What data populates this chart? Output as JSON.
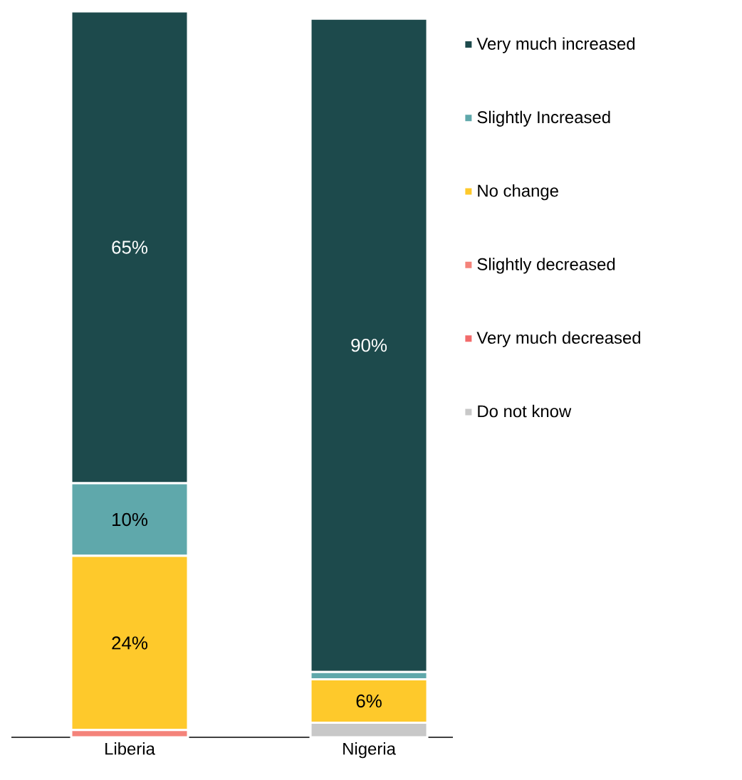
{
  "chart_data": {
    "type": "bar",
    "stacked": true,
    "legend": "right",
    "categories": [
      "Liberia",
      "Nigeria"
    ],
    "series": [
      {
        "name": "Do not know",
        "color": "#c8c8c8",
        "values": [
          0,
          2
        ],
        "value_labels": [
          null,
          null
        ]
      },
      {
        "name": "Very much decreased",
        "color": "#f26b6b",
        "values": [
          0,
          0
        ],
        "value_labels": [
          null,
          null
        ]
      },
      {
        "name": "Slightly decreased",
        "color": "#f4837a",
        "values": [
          1,
          0
        ],
        "value_labels": [
          null,
          null
        ]
      },
      {
        "name": "No change",
        "color": "#fec92b",
        "values": [
          24,
          6
        ],
        "value_labels": [
          "24%",
          "6%"
        ]
      },
      {
        "name": "Slightly Increased",
        "color": "#5fa8ab",
        "values": [
          10,
          1
        ],
        "value_labels": [
          "10%",
          null
        ]
      },
      {
        "name": "Very much increased",
        "color": "#1d4a4c",
        "values": [
          65,
          90
        ],
        "value_labels": [
          "65%",
          "90%"
        ]
      }
    ]
  }
}
